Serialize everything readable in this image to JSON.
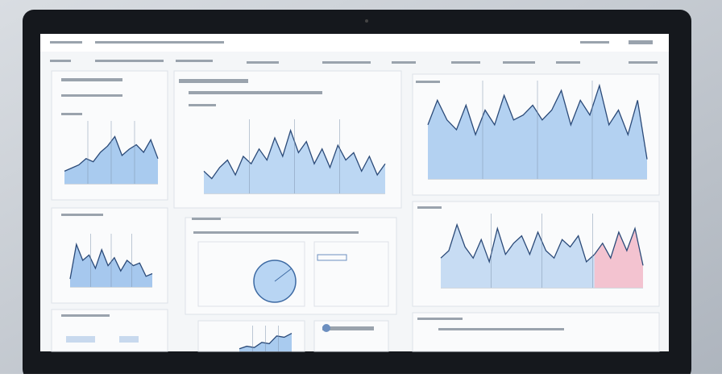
{
  "charts": [
    {
      "ylim": [
        0,
        100
      ],
      "series": [
        {
          "color": "#a9cbef",
          "values": [
            20,
            25,
            30,
            40,
            35,
            50,
            60,
            75,
            45,
            55,
            62,
            50,
            70,
            40
          ]
        }
      ]
    },
    {
      "ylim": [
        0,
        100
      ],
      "series": [
        {
          "color": "#bcd7f3",
          "values": [
            30,
            20,
            35,
            45,
            25,
            50,
            40,
            60,
            45,
            75,
            50,
            85,
            55,
            70,
            40,
            60,
            35,
            65,
            45,
            55,
            30,
            50,
            25,
            40
          ]
        }
      ]
    },
    {
      "ylim": [
        0,
        100
      ],
      "series": [
        {
          "color": "#b3d1f1",
          "values": [
            55,
            80,
            60,
            50,
            75,
            45,
            70,
            55,
            85,
            60,
            65,
            75,
            60,
            70,
            90,
            55,
            80,
            65,
            95,
            55,
            70,
            45,
            80,
            20
          ]
        }
      ]
    },
    {
      "ylim": [
        0,
        100
      ],
      "series": [
        {
          "color": "#a6c8ee",
          "values": [
            15,
            80,
            50,
            60,
            35,
            70,
            40,
            55,
            30,
            50,
            40,
            45,
            20,
            25
          ]
        }
      ]
    },
    {
      "ylim": [
        0,
        100
      ],
      "series": [
        {
          "color": "#c7dcf3",
          "values": [
            40,
            50,
            85,
            55,
            40,
            65,
            35,
            80,
            45,
            60,
            70,
            45,
            75,
            50,
            40,
            65,
            55,
            70,
            35,
            45
          ]
        },
        {
          "color": "#f3c3d0",
          "values": [
            45,
            60,
            40,
            75,
            50,
            80,
            30
          ]
        }
      ]
    },
    {
      "ylim": [
        0,
        100
      ],
      "series": [
        {
          "color": "#a9cbef",
          "values": [
            10,
            20,
            15,
            35,
            30,
            60,
            55,
            70
          ]
        }
      ]
    }
  ]
}
